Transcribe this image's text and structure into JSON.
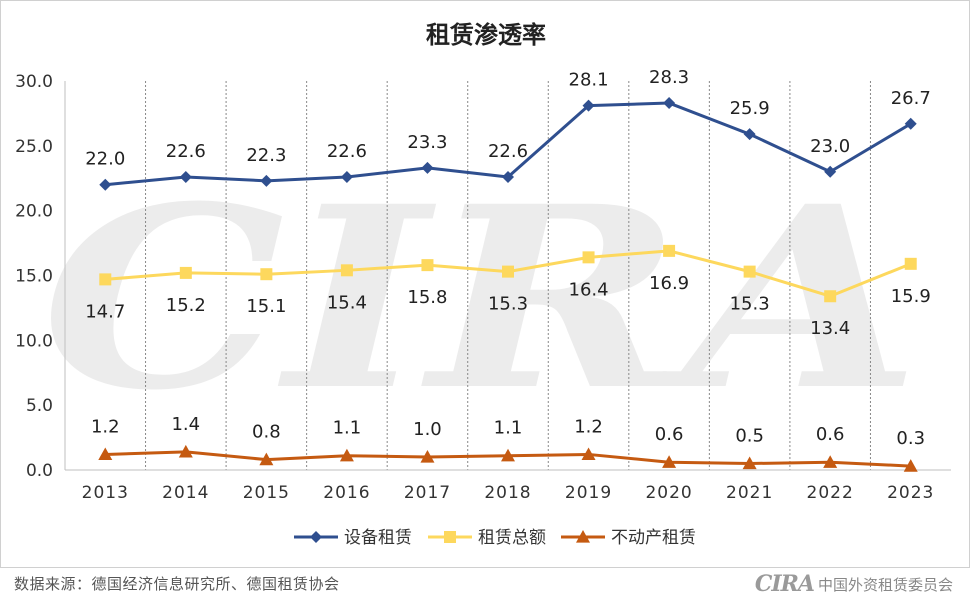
{
  "chart_data": {
    "type": "line",
    "title": "租赁渗透率",
    "categories": [
      "2013",
      "2014",
      "2015",
      "2016",
      "2017",
      "2018",
      "2019",
      "2020",
      "2021",
      "2022",
      "2023"
    ],
    "ylim": [
      0,
      30
    ],
    "yticks": [
      "0.0",
      "5.0",
      "10.0",
      "15.0",
      "20.0",
      "25.0",
      "30.0"
    ],
    "grid": "vertical-dotted",
    "legend_position": "bottom",
    "series": [
      {
        "name": "设备租赁",
        "color": "#2f4f8f",
        "marker": "diamond",
        "values": [
          22.0,
          22.6,
          22.3,
          22.6,
          23.3,
          22.6,
          28.1,
          28.3,
          25.9,
          23.0,
          26.7
        ],
        "labels": [
          "22.0",
          "22.6",
          "22.3",
          "22.6",
          "23.3",
          "22.6",
          "28.1",
          "28.3",
          "25.9",
          "23.0",
          "26.7"
        ]
      },
      {
        "name": "租赁总额",
        "color": "#fdd85d",
        "marker": "square",
        "values": [
          14.7,
          15.2,
          15.1,
          15.4,
          15.8,
          15.3,
          16.4,
          16.9,
          15.3,
          13.4,
          15.9
        ],
        "labels": [
          "14.7",
          "15.2",
          "15.1",
          "15.4",
          "15.8",
          "15.3",
          "16.4",
          "16.9",
          "15.3",
          "13.4",
          "15.9"
        ]
      },
      {
        "name": "不动产租赁",
        "color": "#c55a11",
        "marker": "triangle",
        "values": [
          1.2,
          1.4,
          0.8,
          1.1,
          1.0,
          1.1,
          1.2,
          0.6,
          0.5,
          0.6,
          0.3
        ],
        "labels": [
          "1.2",
          "1.4",
          "0.8",
          "1.1",
          "1.0",
          "1.1",
          "1.2",
          "0.6",
          "0.5",
          "0.6",
          "0.3"
        ]
      }
    ]
  },
  "footer": {
    "source": "数据来源：德国经济信息研究所、德国租赁协会",
    "brand_logo": "CIRA",
    "brand_name": "中国外资租赁委员会"
  }
}
